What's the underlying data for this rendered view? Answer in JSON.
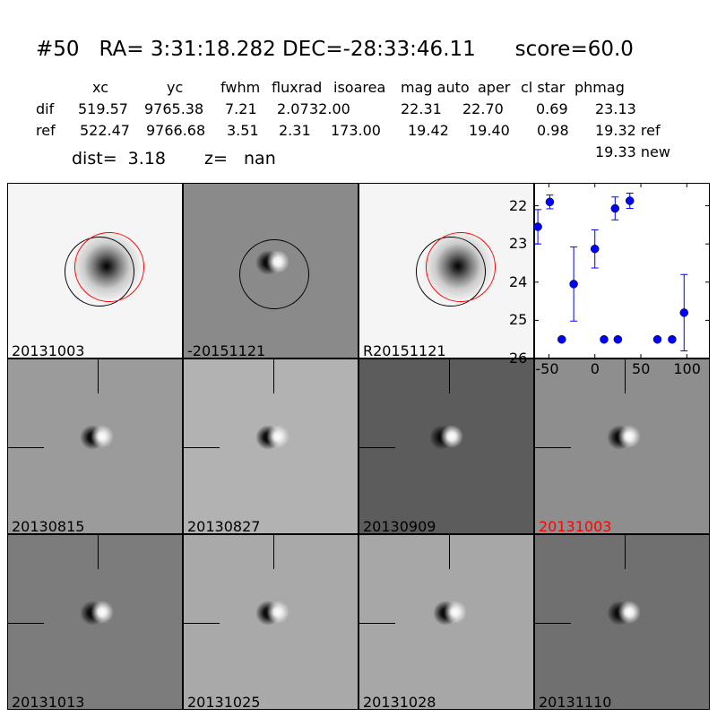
{
  "header": {
    "title": "#50   RA= 3:31:18.282 DEC=-28:33:46.11      score=60.0",
    "columns": [
      "xc",
      "yc",
      "fwhm",
      "fluxrad",
      "isoarea",
      "mag auto",
      "aper",
      "cl star",
      "phmag"
    ],
    "rows": [
      {
        "label": "dif",
        "values": [
          "519.57",
          "9765.38",
          "7.21",
          "2.07",
          "32.00",
          "22.31",
          "22.70",
          "0.69",
          "23.13"
        ]
      },
      {
        "label": "ref",
        "values": [
          "522.47",
          "9766.68",
          "3.51",
          "2.31",
          "173.00",
          "19.42",
          "19.40",
          "0.98",
          "19.32 ref"
        ]
      }
    ],
    "phmag_new": "19.33 new",
    "dist": "dist=  3.18",
    "z": "z=   nan"
  },
  "stamps": [
    {
      "label": "20131003",
      "label_color": "#000000",
      "bg": "#f5f5f5",
      "kind": "star"
    },
    {
      "label": "-20151121",
      "label_color": "#000000",
      "bg": "#8a8a8a",
      "kind": "dipole"
    },
    {
      "label": "R20151121",
      "label_color": "#000000",
      "bg": "#f5f5f5",
      "kind": "star"
    },
    {
      "label": "20130815",
      "label_color": "#000000",
      "bg": "#9b9b9b",
      "kind": "dipole"
    },
    {
      "label": "20130827",
      "label_color": "#000000",
      "bg": "#b2b2b2",
      "kind": "dipole"
    },
    {
      "label": "20130909",
      "label_color": "#000000",
      "bg": "#5c5c5c",
      "kind": "dipole"
    },
    {
      "label": "20131003",
      "label_color": "#ff0000",
      "bg": "#8e8e8e",
      "kind": "dipole"
    },
    {
      "label": "20131013",
      "label_color": "#000000",
      "bg": "#7c7c7c",
      "kind": "dipole"
    },
    {
      "label": "20131025",
      "label_color": "#000000",
      "bg": "#a9a9a9",
      "kind": "dipole"
    },
    {
      "label": "20131028",
      "label_color": "#000000",
      "bg": "#a7a7a7",
      "kind": "dipole"
    },
    {
      "label": "20131110",
      "label_color": "#000000",
      "bg": "#707070",
      "kind": "dipole"
    }
  ],
  "chart_data": {
    "type": "scatter",
    "errorbars": true,
    "color": "#0000ff",
    "xlim": [
      -66,
      125
    ],
    "ylim": [
      26,
      21.4
    ],
    "y_inverted": true,
    "xticks": [
      "-50",
      "0",
      "50",
      "100"
    ],
    "xtick_values": [
      -50,
      0,
      50,
      100
    ],
    "yticks": [
      "22",
      "23",
      "24",
      "25",
      "26"
    ],
    "ytick_values": [
      22,
      23,
      24,
      25,
      26
    ],
    "points": [
      {
        "x": -62,
        "y": 22.55,
        "err": 0.45
      },
      {
        "x": -49,
        "y": 21.9,
        "err": 0.18
      },
      {
        "x": -36,
        "y": 25.5,
        "err": 0.05
      },
      {
        "x": -23,
        "y": 24.05,
        "err": 0.97
      },
      {
        "x": 0,
        "y": 23.13,
        "err": 0.5
      },
      {
        "x": 10,
        "y": 25.5,
        "err": 0.05
      },
      {
        "x": 22,
        "y": 22.07,
        "err": 0.3
      },
      {
        "x": 25,
        "y": 25.5,
        "err": 0.05
      },
      {
        "x": 38,
        "y": 21.87,
        "err": 0.2
      },
      {
        "x": 68,
        "y": 25.5,
        "err": 0.05
      },
      {
        "x": 84,
        "y": 25.5,
        "err": 0.05
      },
      {
        "x": 97,
        "y": 24.8,
        "err": 1.0
      }
    ]
  }
}
